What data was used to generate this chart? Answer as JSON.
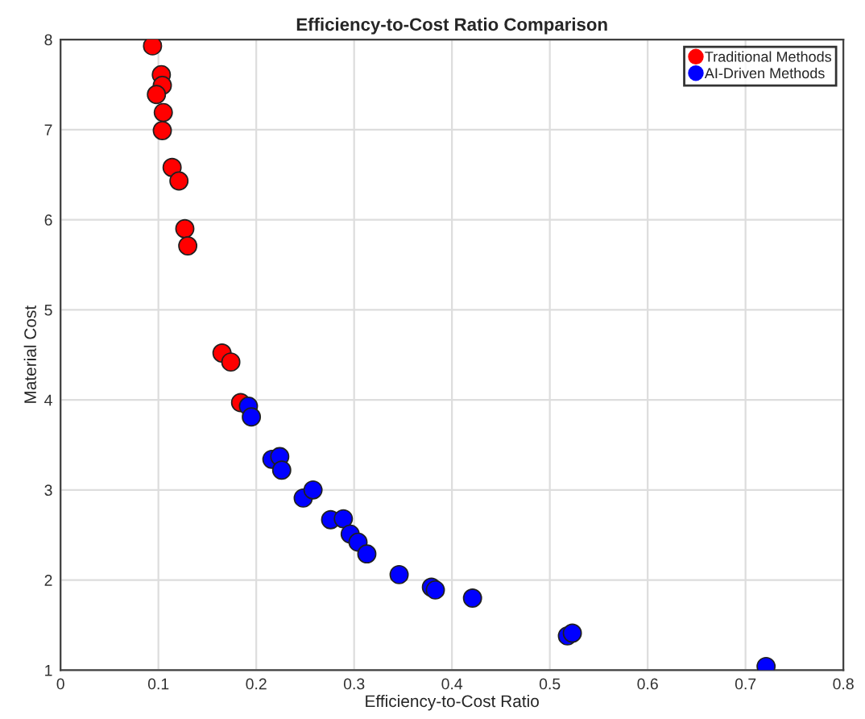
{
  "chart_data": {
    "type": "scatter",
    "title": "Efficiency-to-Cost Ratio Comparison",
    "xlabel": "Efficiency-to-Cost Ratio",
    "ylabel": "Material Cost",
    "xlim": [
      0,
      0.8
    ],
    "ylim": [
      1,
      8
    ],
    "xticks": [
      0,
      0.1,
      0.2,
      0.3,
      0.4,
      0.5,
      0.6,
      0.7,
      0.8
    ],
    "yticks": [
      1,
      2,
      3,
      4,
      5,
      6,
      7,
      8
    ],
    "grid": true,
    "legend": "top right",
    "marker": "circle",
    "series": [
      {
        "name": "Traditional Methods",
        "color": "#ff0000",
        "x": [
          0.094,
          0.103,
          0.104,
          0.098,
          0.105,
          0.104,
          0.114,
          0.121,
          0.127,
          0.13,
          0.165,
          0.174,
          0.184
        ],
        "values": [
          7.93,
          7.61,
          7.49,
          7.39,
          7.19,
          6.99,
          6.58,
          6.43,
          5.9,
          5.71,
          4.52,
          4.42,
          3.97
        ]
      },
      {
        "name": "AI-Driven Methods",
        "color": "#0000ff",
        "x": [
          0.192,
          0.195,
          0.216,
          0.224,
          0.226,
          0.248,
          0.258,
          0.276,
          0.289,
          0.296,
          0.304,
          0.313,
          0.346,
          0.379,
          0.383,
          0.421,
          0.518,
          0.523,
          0.721
        ],
        "values": [
          3.93,
          3.81,
          3.34,
          3.37,
          3.22,
          2.91,
          3.0,
          2.67,
          2.68,
          2.51,
          2.42,
          2.29,
          2.06,
          1.92,
          1.89,
          1.8,
          1.38,
          1.41,
          1.04
        ]
      }
    ]
  }
}
